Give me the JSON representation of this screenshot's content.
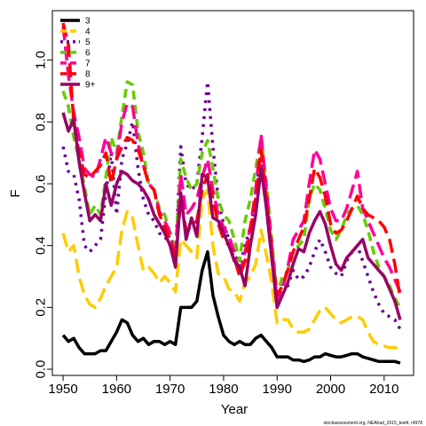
{
  "chart_data": {
    "type": "line",
    "xlabel": "Year",
    "ylabel": "F",
    "xlim": [
      1948,
      2015.5
    ],
    "ylim": [
      -0.02,
      1.16
    ],
    "x_ticks": [
      1950,
      1960,
      1970,
      1980,
      1990,
      2000,
      2010
    ],
    "y_ticks": [
      0.0,
      0.2,
      0.4,
      0.6,
      0.8,
      1.0
    ],
    "grid": false,
    "legend_position": "top-left",
    "source_note": "stockassessment.org, NEAhad_2015_test4, r4978",
    "x": [
      1950,
      1951,
      1952,
      1953,
      1954,
      1955,
      1956,
      1957,
      1958,
      1959,
      1960,
      1961,
      1962,
      1963,
      1964,
      1965,
      1966,
      1967,
      1968,
      1969,
      1970,
      1971,
      1972,
      1973,
      1974,
      1975,
      1976,
      1977,
      1978,
      1979,
      1980,
      1981,
      1982,
      1983,
      1984,
      1985,
      1986,
      1987,
      1988,
      1989,
      1990,
      1991,
      1992,
      1993,
      1994,
      1995,
      1996,
      1997,
      1998,
      1999,
      2000,
      2001,
      2002,
      2003,
      2004,
      2005,
      2006,
      2007,
      2008,
      2009,
      2010,
      2011,
      2012,
      2013
    ],
    "series": [
      {
        "name": "3",
        "color": "#000000",
        "dash": "solid",
        "values": [
          0.11,
          0.09,
          0.1,
          0.07,
          0.05,
          0.05,
          0.05,
          0.06,
          0.06,
          0.09,
          0.12,
          0.16,
          0.15,
          0.11,
          0.09,
          0.1,
          0.08,
          0.09,
          0.09,
          0.08,
          0.09,
          0.08,
          0.2,
          0.2,
          0.2,
          0.22,
          0.32,
          0.38,
          0.24,
          0.17,
          0.11,
          0.09,
          0.08,
          0.09,
          0.08,
          0.08,
          0.1,
          0.11,
          0.09,
          0.07,
          0.04,
          0.04,
          0.04,
          0.03,
          0.03,
          0.025,
          0.03,
          0.04,
          0.04,
          0.05,
          0.045,
          0.04,
          0.04,
          0.045,
          0.05,
          0.05,
          0.04,
          0.035,
          0.03,
          0.025,
          0.025,
          0.025,
          0.025,
          0.02
        ]
      },
      {
        "name": "4",
        "color": "#ffcc00",
        "dash": "longdash",
        "values": [
          0.44,
          0.38,
          0.4,
          0.3,
          0.24,
          0.21,
          0.2,
          0.23,
          0.27,
          0.3,
          0.33,
          0.45,
          0.51,
          0.49,
          0.4,
          0.32,
          0.33,
          0.31,
          0.28,
          0.3,
          0.28,
          0.25,
          0.42,
          0.4,
          0.38,
          0.36,
          0.55,
          0.58,
          0.4,
          0.31,
          0.3,
          0.26,
          0.25,
          0.22,
          0.28,
          0.3,
          0.34,
          0.45,
          0.37,
          0.28,
          0.15,
          0.16,
          0.16,
          0.13,
          0.12,
          0.12,
          0.13,
          0.16,
          0.19,
          0.2,
          0.18,
          0.16,
          0.15,
          0.16,
          0.17,
          0.17,
          0.16,
          0.12,
          0.09,
          0.08,
          0.075,
          0.07,
          0.07,
          0.065
        ]
      },
      {
        "name": "5",
        "color": "#660099",
        "dash": "dotted",
        "values": [
          0.72,
          0.64,
          0.63,
          0.55,
          0.4,
          0.38,
          0.4,
          0.42,
          0.57,
          0.7,
          0.5,
          0.68,
          0.73,
          0.8,
          0.65,
          0.55,
          0.5,
          0.48,
          0.44,
          0.43,
          0.4,
          0.37,
          0.72,
          0.6,
          0.58,
          0.6,
          0.75,
          0.93,
          0.72,
          0.55,
          0.47,
          0.42,
          0.38,
          0.33,
          0.4,
          0.46,
          0.55,
          0.72,
          0.52,
          0.36,
          0.21,
          0.28,
          0.27,
          0.32,
          0.29,
          0.3,
          0.33,
          0.38,
          0.42,
          0.38,
          0.33,
          0.31,
          0.3,
          0.35,
          0.38,
          0.4,
          0.35,
          0.3,
          0.25,
          0.21,
          0.18,
          0.17,
          0.16,
          0.13
        ]
      },
      {
        "name": "6",
        "color": "#66cc00",
        "dash": "dashed",
        "values": [
          0.9,
          0.85,
          0.75,
          0.68,
          0.59,
          0.5,
          0.53,
          0.5,
          0.62,
          0.75,
          0.7,
          0.82,
          0.93,
          0.92,
          0.77,
          0.7,
          0.6,
          0.58,
          0.52,
          0.5,
          0.44,
          0.38,
          0.68,
          0.62,
          0.58,
          0.6,
          0.7,
          0.74,
          0.65,
          0.55,
          0.5,
          0.48,
          0.42,
          0.35,
          0.48,
          0.55,
          0.65,
          0.75,
          0.6,
          0.42,
          0.24,
          0.3,
          0.32,
          0.38,
          0.4,
          0.42,
          0.55,
          0.6,
          0.58,
          0.52,
          0.45,
          0.42,
          0.45,
          0.5,
          0.52,
          0.53,
          0.5,
          0.45,
          0.38,
          0.33,
          0.3,
          0.27,
          0.23,
          0.2
        ]
      },
      {
        "name": "7",
        "color": "#ff0099",
        "dash": "longdash",
        "values": [
          1.11,
          0.95,
          0.83,
          0.75,
          0.65,
          0.63,
          0.62,
          0.68,
          0.75,
          0.7,
          0.68,
          0.8,
          0.86,
          0.85,
          0.73,
          0.66,
          0.6,
          0.58,
          0.51,
          0.48,
          0.44,
          0.36,
          0.63,
          0.5,
          0.52,
          0.55,
          0.62,
          0.68,
          0.58,
          0.5,
          0.46,
          0.43,
          0.38,
          0.3,
          0.38,
          0.46,
          0.58,
          0.76,
          0.58,
          0.4,
          0.22,
          0.26,
          0.33,
          0.42,
          0.45,
          0.48,
          0.6,
          0.71,
          0.68,
          0.6,
          0.52,
          0.48,
          0.48,
          0.52,
          0.58,
          0.64,
          0.52,
          0.48,
          0.44,
          0.4,
          0.36,
          0.33,
          0.29,
          0.25
        ]
      },
      {
        "name": "8",
        "color": "#ff0000",
        "dash": "longdash",
        "values": [
          1.12,
          1.05,
          0.8,
          0.7,
          0.63,
          0.62,
          0.64,
          0.66,
          0.7,
          0.6,
          0.68,
          0.72,
          0.75,
          0.74,
          0.71,
          0.66,
          0.6,
          0.58,
          0.5,
          0.46,
          0.42,
          0.35,
          0.55,
          0.45,
          0.46,
          0.48,
          0.58,
          0.63,
          0.55,
          0.47,
          0.42,
          0.4,
          0.36,
          0.3,
          0.35,
          0.45,
          0.55,
          0.71,
          0.55,
          0.38,
          0.24,
          0.27,
          0.32,
          0.38,
          0.42,
          0.46,
          0.55,
          0.65,
          0.62,
          0.56,
          0.47,
          0.44,
          0.45,
          0.48,
          0.52,
          0.56,
          0.52,
          0.5,
          0.49,
          0.48,
          0.46,
          0.42,
          0.34,
          0.23
        ]
      },
      {
        "name": "9+",
        "color": "#990066",
        "dash": "solid",
        "values": [
          0.83,
          0.77,
          0.81,
          0.67,
          0.57,
          0.48,
          0.5,
          0.48,
          0.6,
          0.53,
          0.6,
          0.64,
          0.63,
          0.61,
          0.6,
          0.58,
          0.55,
          0.5,
          0.47,
          0.44,
          0.4,
          0.33,
          0.57,
          0.42,
          0.49,
          0.43,
          0.63,
          0.62,
          0.49,
          0.48,
          0.44,
          0.4,
          0.35,
          0.33,
          0.27,
          0.4,
          0.5,
          0.65,
          0.52,
          0.36,
          0.2,
          0.24,
          0.28,
          0.34,
          0.39,
          0.38,
          0.44,
          0.48,
          0.51,
          0.47,
          0.4,
          0.34,
          0.32,
          0.36,
          0.38,
          0.4,
          0.42,
          0.36,
          0.34,
          0.32,
          0.3,
          0.26,
          0.22,
          0.16
        ]
      }
    ]
  }
}
